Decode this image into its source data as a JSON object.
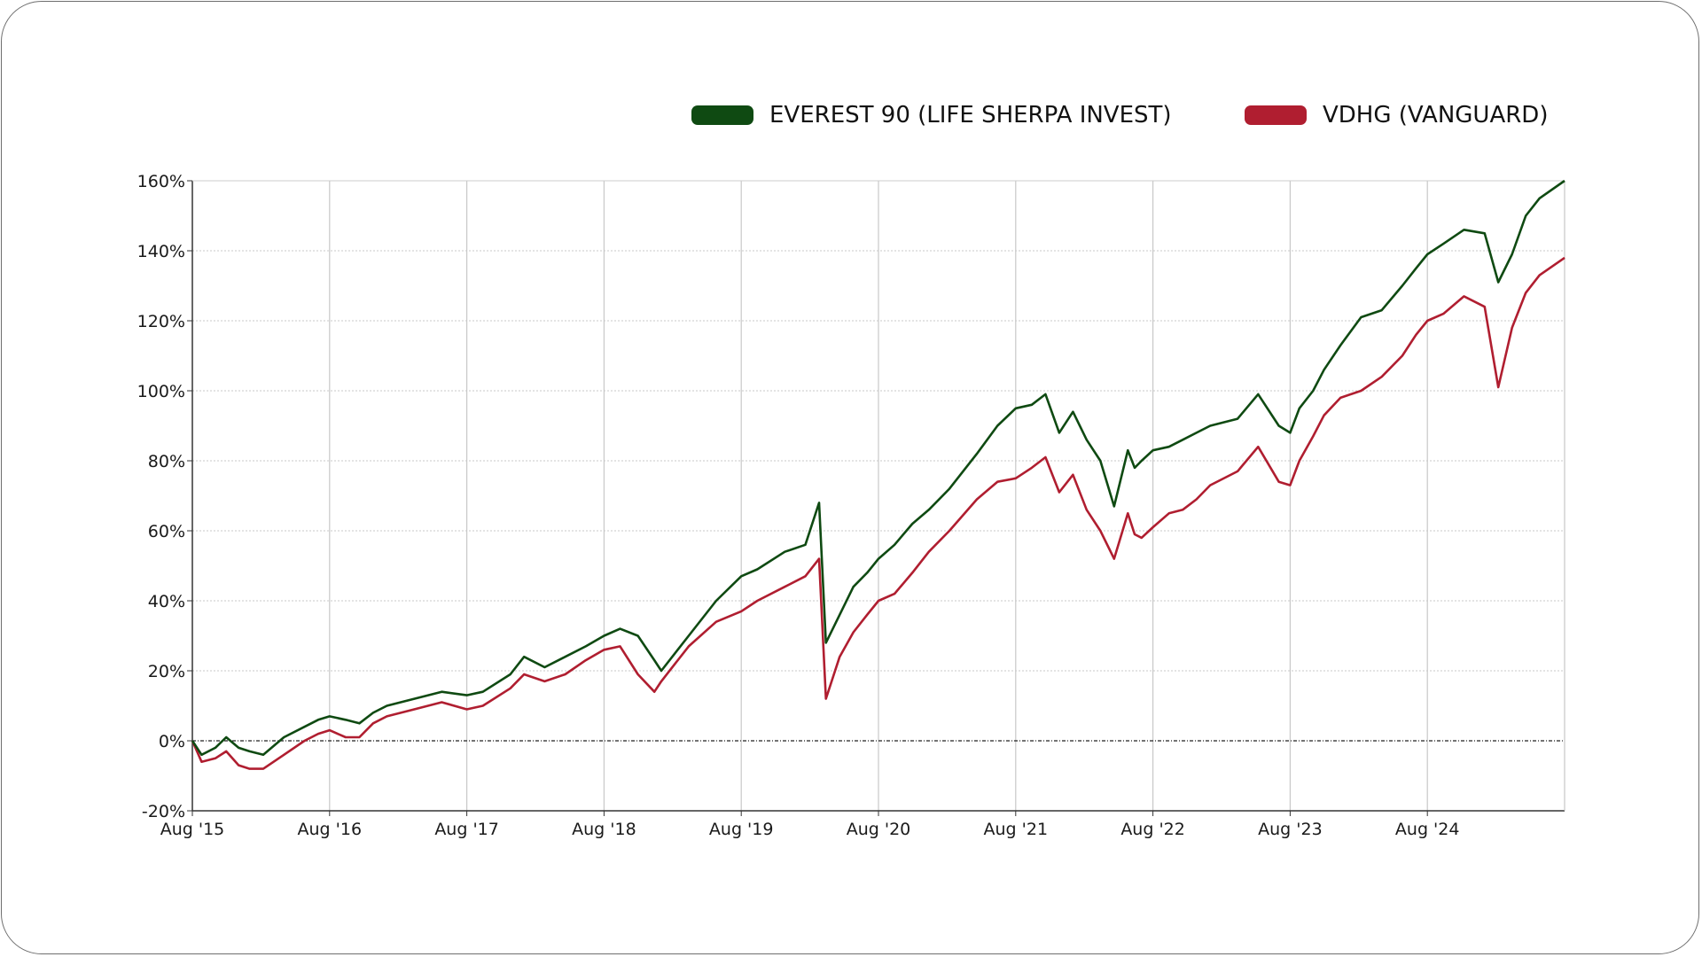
{
  "colors": {
    "series_everest": "#0f4a12",
    "series_vdhg": "#b01e30",
    "grid": "#c8c8c8",
    "axis": "#333333"
  },
  "legend": {
    "items": [
      {
        "label": "EVEREST 90 (LIFE SHERPA INVEST)",
        "color": "#0f4a12"
      },
      {
        "label": "VDHG (VANGUARD)",
        "color": "#b01e30"
      }
    ]
  },
  "chart_data": {
    "type": "line",
    "title": "",
    "xlabel": "",
    "ylabel": "",
    "ylim": [
      -20,
      160
    ],
    "y_ticks": [
      -20,
      0,
      20,
      40,
      60,
      80,
      100,
      120,
      140,
      160
    ],
    "y_tick_labels": [
      "-20%",
      "0%",
      "20%",
      "40%",
      "60%",
      "80%",
      "100%",
      "120%",
      "140%",
      "160%"
    ],
    "x_ticks": [
      2015.583,
      2016.583,
      2017.583,
      2018.583,
      2019.583,
      2020.583,
      2021.583,
      2022.583,
      2023.583,
      2024.583
    ],
    "x_tick_labels": [
      "Aug '15",
      "Aug '16",
      "Aug '17",
      "Aug '18",
      "Aug '19",
      "Aug '20",
      "Aug '21",
      "Aug '22",
      "Aug '23",
      "Aug '24"
    ],
    "xlim": [
      2015.583,
      2025.583
    ],
    "grid": true,
    "legend_position": "top-right",
    "series": [
      {
        "name": "EVEREST 90 (LIFE SHERPA INVEST)",
        "color": "#0f4a12",
        "x": [
          2015.583,
          2015.65,
          2015.75,
          2015.83,
          2015.92,
          2016.0,
          2016.1,
          2016.25,
          2016.4,
          2016.5,
          2016.583,
          2016.7,
          2016.8,
          2016.9,
          2017.0,
          2017.2,
          2017.4,
          2017.583,
          2017.7,
          2017.9,
          2018.0,
          2018.15,
          2018.3,
          2018.45,
          2018.583,
          2018.7,
          2018.83,
          2018.95,
          2019.0,
          2019.2,
          2019.4,
          2019.583,
          2019.7,
          2019.9,
          2020.05,
          2020.15,
          2020.2,
          2020.3,
          2020.4,
          2020.5,
          2020.583,
          2020.7,
          2020.83,
          2020.95,
          2021.1,
          2021.3,
          2021.45,
          2021.583,
          2021.7,
          2021.8,
          2021.9,
          2022.0,
          2022.1,
          2022.2,
          2022.3,
          2022.4,
          2022.45,
          2022.5,
          2022.583,
          2022.7,
          2022.8,
          2022.9,
          2023.0,
          2023.2,
          2023.35,
          2023.5,
          2023.583,
          2023.65,
          2023.75,
          2023.83,
          2023.95,
          2024.1,
          2024.25,
          2024.4,
          2024.5,
          2024.583,
          2024.7,
          2024.85,
          2025.0,
          2025.1,
          2025.2,
          2025.3,
          2025.4,
          2025.583
        ],
        "values": [
          0,
          -4,
          -2,
          1,
          -2,
          -3,
          -4,
          1,
          4,
          6,
          7,
          6,
          5,
          8,
          10,
          12,
          14,
          13,
          14,
          19,
          24,
          21,
          24,
          27,
          30,
          32,
          30,
          23,
          20,
          30,
          40,
          47,
          49,
          54,
          56,
          68,
          28,
          36,
          44,
          48,
          52,
          56,
          62,
          66,
          72,
          82,
          90,
          95,
          96,
          99,
          88,
          94,
          86,
          80,
          67,
          83,
          78,
          80,
          83,
          84,
          86,
          88,
          90,
          92,
          99,
          90,
          88,
          95,
          100,
          106,
          113,
          121,
          123,
          130,
          135,
          139,
          142,
          146,
          145,
          131,
          139,
          150,
          155,
          160
        ]
      },
      {
        "name": "VDHG (VANGUARD)",
        "color": "#b01e30",
        "x": [
          2015.583,
          2015.65,
          2015.75,
          2015.83,
          2015.92,
          2016.0,
          2016.1,
          2016.25,
          2016.4,
          2016.5,
          2016.583,
          2016.7,
          2016.8,
          2016.9,
          2017.0,
          2017.2,
          2017.4,
          2017.583,
          2017.7,
          2017.9,
          2018.0,
          2018.15,
          2018.3,
          2018.45,
          2018.583,
          2018.7,
          2018.83,
          2018.95,
          2019.0,
          2019.2,
          2019.4,
          2019.583,
          2019.7,
          2019.9,
          2020.05,
          2020.15,
          2020.2,
          2020.3,
          2020.4,
          2020.5,
          2020.583,
          2020.7,
          2020.83,
          2020.95,
          2021.1,
          2021.3,
          2021.45,
          2021.583,
          2021.7,
          2021.8,
          2021.9,
          2022.0,
          2022.1,
          2022.2,
          2022.3,
          2022.4,
          2022.45,
          2022.5,
          2022.583,
          2022.7,
          2022.8,
          2022.9,
          2023.0,
          2023.2,
          2023.35,
          2023.5,
          2023.583,
          2023.65,
          2023.75,
          2023.83,
          2023.95,
          2024.1,
          2024.25,
          2024.4,
          2024.5,
          2024.583,
          2024.7,
          2024.85,
          2025.0,
          2025.1,
          2025.2,
          2025.3,
          2025.4,
          2025.583
        ],
        "values": [
          0,
          -6,
          -5,
          -3,
          -7,
          -8,
          -8,
          -4,
          0,
          2,
          3,
          1,
          1,
          5,
          7,
          9,
          11,
          9,
          10,
          15,
          19,
          17,
          19,
          23,
          26,
          27,
          19,
          14,
          17,
          27,
          34,
          37,
          40,
          44,
          47,
          52,
          12,
          24,
          31,
          36,
          40,
          42,
          48,
          54,
          60,
          69,
          74,
          75,
          78,
          81,
          71,
          76,
          66,
          60,
          52,
          65,
          59,
          58,
          61,
          65,
          66,
          69,
          73,
          77,
          84,
          74,
          73,
          80,
          87,
          93,
          98,
          100,
          104,
          110,
          116,
          120,
          122,
          127,
          124,
          101,
          118,
          128,
          133,
          138
        ]
      }
    ]
  }
}
